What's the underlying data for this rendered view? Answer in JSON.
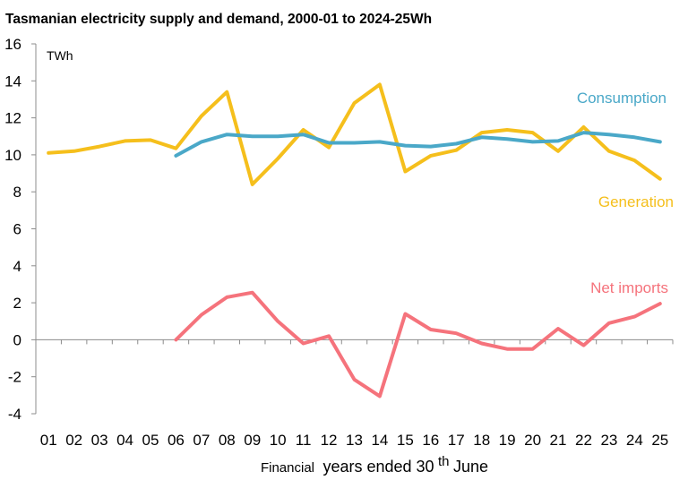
{
  "chart_data": {
    "type": "line",
    "title": "Tasmanian electricity supply and demand, 2000-01 to 2024-25Wh",
    "unit": "TWh",
    "xlabel": {
      "prefix": "Financial",
      "main": "years ended 30",
      "sup": "th",
      "suffix": " June"
    },
    "categories": [
      "01",
      "02",
      "03",
      "04",
      "05",
      "06",
      "07",
      "08",
      "09",
      "10",
      "11",
      "12",
      "13",
      "14",
      "15",
      "16",
      "17",
      "18",
      "19",
      "20",
      "21",
      "22",
      "23",
      "24",
      "25"
    ],
    "ylim": [
      -4,
      16
    ],
    "yticks": [
      -4,
      -2,
      0,
      2,
      4,
      6,
      8,
      10,
      12,
      14,
      16
    ],
    "grid": false,
    "series": [
      {
        "name": "Generation",
        "color": "#F5BF1C",
        "values": [
          10.1,
          10.2,
          10.45,
          10.75,
          10.8,
          10.35,
          12.1,
          13.4,
          8.4,
          9.8,
          11.35,
          10.4,
          12.8,
          13.8,
          9.1,
          9.95,
          10.25,
          11.2,
          11.35,
          11.2,
          10.2,
          11.5,
          10.2,
          9.7,
          8.7
        ]
      },
      {
        "name": "Consumption",
        "color": "#4AA8C8",
        "values": [
          null,
          null,
          null,
          null,
          null,
          9.95,
          10.7,
          11.1,
          11.0,
          11.0,
          11.1,
          10.65,
          10.65,
          10.7,
          10.5,
          10.45,
          10.6,
          10.95,
          10.85,
          10.7,
          10.75,
          11.2,
          11.1,
          10.95,
          10.7
        ]
      },
      {
        "name": "Net imports",
        "color": "#F5737C",
        "values": [
          null,
          null,
          null,
          null,
          null,
          0.0,
          1.35,
          2.3,
          2.55,
          1.0,
          -0.2,
          0.2,
          -2.15,
          -3.05,
          1.4,
          0.55,
          0.35,
          -0.2,
          -0.5,
          -0.5,
          0.6,
          -0.3,
          0.9,
          1.25,
          1.95
        ]
      }
    ]
  }
}
